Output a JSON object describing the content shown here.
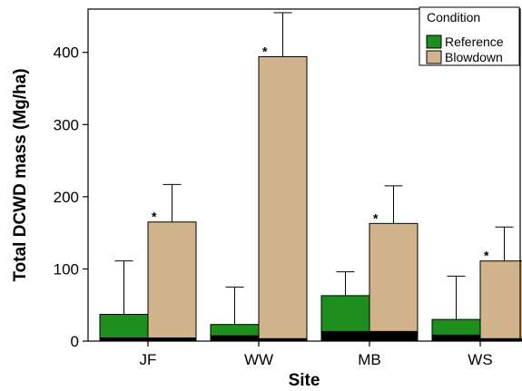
{
  "chart_data": {
    "type": "bar",
    "xlabel": "Site",
    "ylabel": "Total DCWD mass (Mg/ha)",
    "ylim": [
      0,
      460
    ],
    "yticks": [
      0,
      100,
      200,
      300,
      400
    ],
    "categories": [
      "JF",
      "WW",
      "MB",
      "WS"
    ],
    "series": [
      {
        "name": "Reference",
        "color": "#1e8f1e",
        "values": [
          37,
          23,
          63,
          30
        ],
        "error_upper": [
          111,
          75,
          96,
          90
        ],
        "dark_base": [
          5,
          8,
          14,
          9
        ]
      },
      {
        "name": "Blowdown",
        "color": "#d2b48c",
        "values": [
          165,
          394,
          163,
          111
        ],
        "error_upper": [
          217,
          455,
          215,
          158
        ],
        "dark_base": [
          5,
          4,
          14,
          4
        ],
        "significance": [
          "*",
          "*",
          "*",
          "*"
        ]
      }
    ],
    "legend": {
      "title": "Condition",
      "position": "top-right"
    },
    "grid": false
  }
}
